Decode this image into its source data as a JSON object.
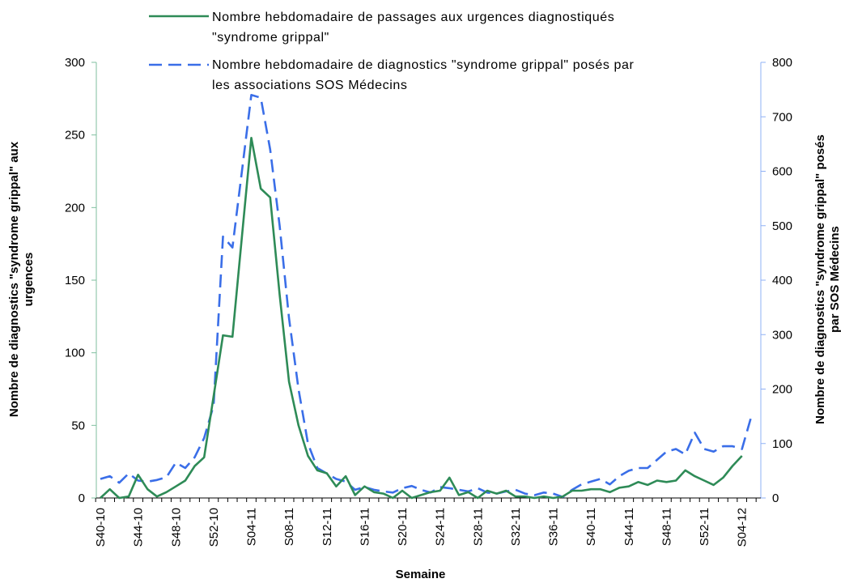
{
  "chart_data": {
    "type": "line",
    "xlabel": "Semaine",
    "ylabel_left": "Nombre de diagnostics \"syndrome grippal\" aux urgences",
    "ylabel_right": "Nombre de diagnostics \"syndrome grippal\" posés par SOS Médecins",
    "ylim_left": [
      0,
      300
    ],
    "ylim_right": [
      0,
      800
    ],
    "yticks_left": [
      0,
      50,
      100,
      150,
      200,
      250,
      300
    ],
    "yticks_right": [
      0,
      100,
      200,
      300,
      400,
      500,
      600,
      700,
      800
    ],
    "grid": false,
    "legend_position": "top",
    "tick_labels": [
      "S40-10",
      "S44-10",
      "S48-10",
      "S52-10",
      "S04-11",
      "S08-11",
      "S12-11",
      "S16-11",
      "S20-11",
      "S24-11",
      "S28-11",
      "S32-11",
      "S36-11",
      "S40-11",
      "S44-11",
      "S48-11",
      "S52-11",
      "S04-12"
    ],
    "tick_label_indices": [
      0,
      4,
      8,
      12,
      16,
      20,
      24,
      28,
      32,
      36,
      40,
      44,
      48,
      52,
      56,
      60,
      64,
      68
    ],
    "x": [
      "S40-10",
      "S41-10",
      "S42-10",
      "S43-10",
      "S44-10",
      "S45-10",
      "S46-10",
      "S47-10",
      "S48-10",
      "S49-10",
      "S50-10",
      "S51-10",
      "S52-10",
      "S01-11",
      "S02-11",
      "S03-11",
      "S04-11",
      "S05-11",
      "S06-11",
      "S07-11",
      "S08-11",
      "S09-11",
      "S10-11",
      "S11-11",
      "S12-11",
      "S13-11",
      "S14-11",
      "S15-11",
      "S16-11",
      "S17-11",
      "S18-11",
      "S19-11",
      "S20-11",
      "S21-11",
      "S22-11",
      "S23-11",
      "S24-11",
      "S25-11",
      "S26-11",
      "S27-11",
      "S28-11",
      "S29-11",
      "S30-11",
      "S31-11",
      "S32-11",
      "S33-11",
      "S34-11",
      "S35-11",
      "S36-11",
      "S37-11",
      "S38-11",
      "S39-11",
      "S40-11",
      "S41-11",
      "S42-11",
      "S43-11",
      "S44-11",
      "S45-11",
      "S46-11",
      "S47-11",
      "S48-11",
      "S49-11",
      "S50-11",
      "S51-11",
      "S52-11",
      "S01-12",
      "S02-12",
      "S03-12",
      "S04-12",
      "S05-12"
    ],
    "series": [
      {
        "name": "Nombre hebdomadaire de passages aux urgences diagnostiqués \"syndrome grippal\"",
        "axis": "left",
        "color": "#2e8b57",
        "style": "solid",
        "values": [
          0,
          6,
          0,
          1,
          16,
          6,
          1,
          4,
          8,
          12,
          22,
          28,
          70,
          112,
          111,
          180,
          248,
          213,
          207,
          140,
          80,
          50,
          29,
          19,
          17,
          8,
          15,
          2,
          8,
          4,
          3,
          0,
          5,
          0,
          2,
          4,
          5,
          14,
          2,
          4,
          0,
          5,
          3,
          5,
          1,
          1,
          0,
          1,
          0,
          1,
          5,
          5,
          6,
          6,
          4,
          7,
          8,
          11,
          9,
          12,
          11,
          12,
          19,
          15,
          12,
          9,
          14,
          22,
          29,
          null
        ]
      },
      {
        "name": "Nombre hebdomadaire de diagnostics \"syndrome grippal\" posés par les associations SOS Médecins",
        "axis": "right",
        "color": "#3a6ee8",
        "style": "dashed",
        "values": [
          35,
          40,
          28,
          45,
          32,
          30,
          33,
          38,
          65,
          55,
          75,
          110,
          170,
          480,
          460,
          600,
          740,
          735,
          640,
          500,
          330,
          200,
          100,
          55,
          45,
          35,
          30,
          15,
          20,
          15,
          12,
          10,
          18,
          22,
          15,
          10,
          20,
          18,
          15,
          12,
          18,
          10,
          8,
          12,
          15,
          8,
          5,
          10,
          8,
          2,
          15,
          25,
          30,
          35,
          25,
          40,
          50,
          55,
          55,
          70,
          85,
          90,
          80,
          120,
          90,
          85,
          95,
          95,
          90,
          150
        ]
      }
    ]
  }
}
